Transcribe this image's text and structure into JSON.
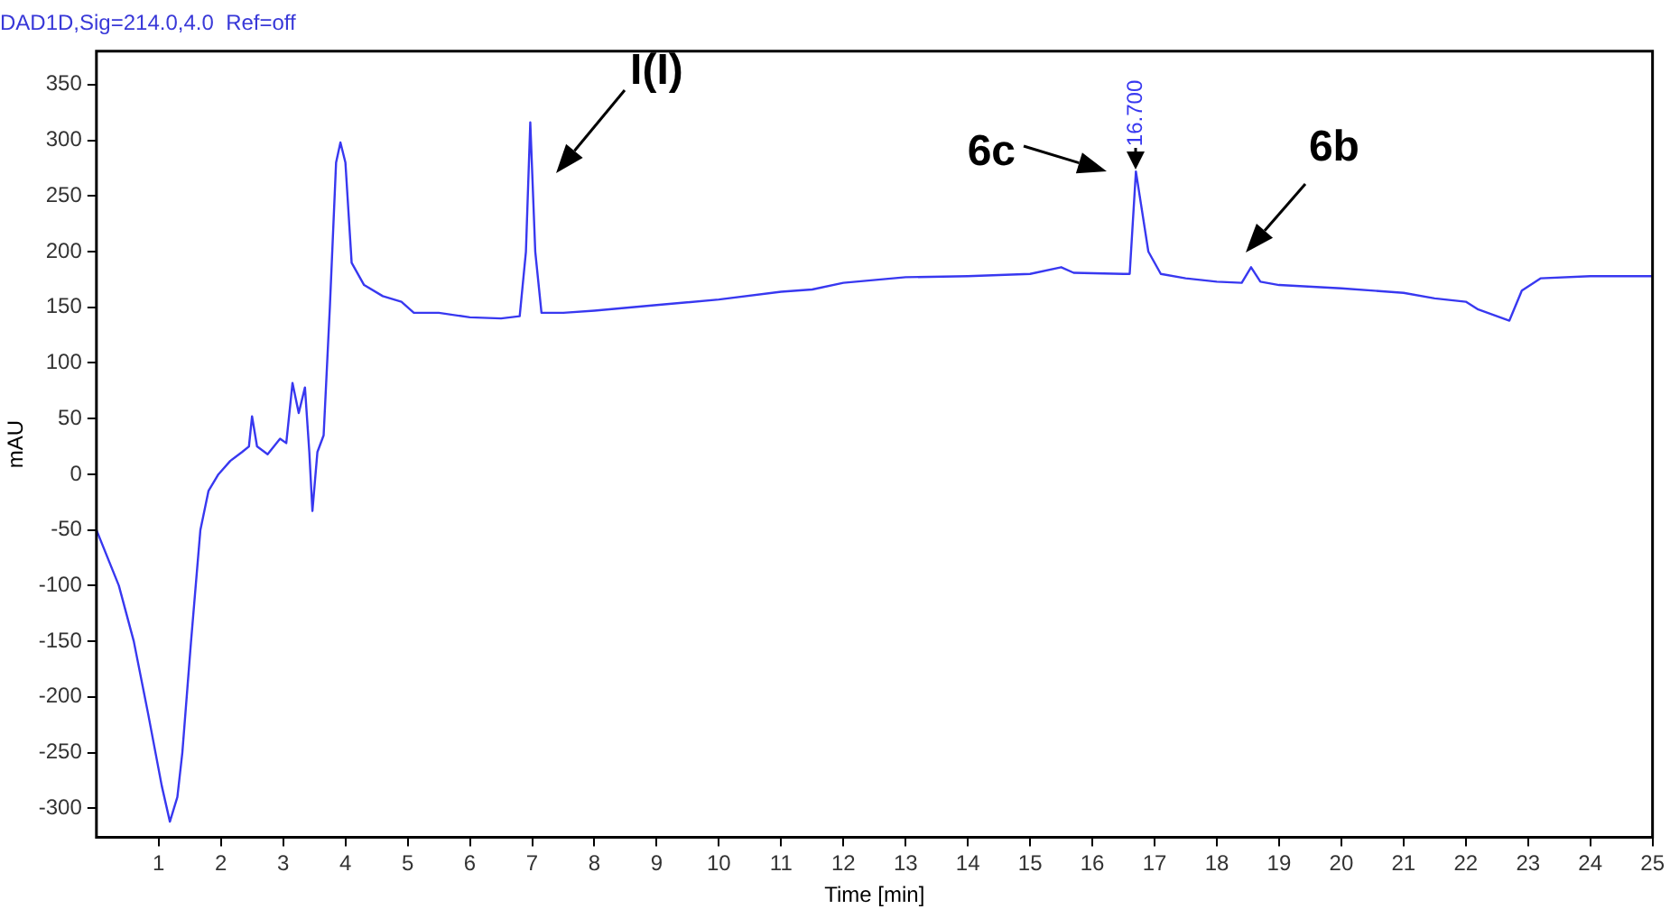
{
  "chart_data": {
    "type": "line",
    "title": "DAD1D,Sig=214.0,4.0  Ref=off",
    "xlabel": "Time [min]",
    "ylabel": "mAU",
    "xlim": [
      0,
      25
    ],
    "xticks": [
      1,
      2,
      3,
      4,
      5,
      6,
      7,
      8,
      9,
      10,
      11,
      12,
      13,
      14,
      15,
      16,
      17,
      18,
      19,
      20,
      21,
      22,
      23,
      24,
      25
    ],
    "ylim": [
      -326,
      380
    ],
    "yticks": [
      -300,
      -250,
      -200,
      -150,
      -100,
      -50,
      0,
      50,
      100,
      150,
      200,
      250,
      300,
      350
    ],
    "grid": false,
    "legend": false,
    "marker": "none",
    "line_style": "solid",
    "series": [
      {
        "color": "#3838f0",
        "x": [
          0,
          0.36,
          0.6,
          0.83,
          1.05,
          1.18,
          1.3,
          1.38,
          1.52,
          1.67,
          1.8,
          1.96,
          2.15,
          2.34,
          2.45,
          2.5,
          2.58,
          2.75,
          2.95,
          3.05,
          3.15,
          3.25,
          3.35,
          3.42,
          3.47,
          3.55,
          3.65,
          3.75,
          3.85,
          3.92,
          4.0,
          4.1,
          4.3,
          4.6,
          4.9,
          5.1,
          5.5,
          6.0,
          6.5,
          6.8,
          6.9,
          6.97,
          7.05,
          7.15,
          7.5,
          8,
          9,
          10,
          11,
          11.5,
          12,
          13,
          14,
          15,
          15.5,
          15.7,
          16.5,
          16.6,
          16.7,
          16.9,
          17.1,
          17.5,
          18,
          18.4,
          18.55,
          18.7,
          19,
          20,
          21,
          21.5,
          22,
          22.2,
          22.7,
          22.9,
          23.2,
          24,
          25
        ],
        "values": [
          -50,
          -100,
          -150,
          -215,
          -280,
          -312,
          -290,
          -250,
          -150,
          -50,
          -15,
          0,
          12,
          20,
          25,
          52,
          25,
          18,
          32,
          28,
          82,
          55,
          78,
          20,
          -33,
          20,
          35,
          150,
          280,
          298,
          280,
          190,
          170,
          160,
          155,
          145,
          145,
          141,
          140,
          142,
          200,
          316,
          200,
          145,
          145,
          147,
          152,
          157,
          164,
          166,
          172,
          177,
          178,
          180,
          186,
          181,
          180,
          180,
          272,
          200,
          180,
          176,
          173,
          172,
          186,
          173,
          170,
          167,
          163,
          158,
          155,
          148,
          138,
          165,
          176,
          178,
          178
        ]
      }
    ],
    "annotations": [
      {
        "text": "I(I)",
        "x": 6.97,
        "y": 316
      },
      {
        "text": "6c",
        "x": 16.7,
        "y": 272
      },
      {
        "text": "16.700",
        "x": 16.7,
        "y": 272
      },
      {
        "text": "6b",
        "x": 18.55,
        "y": 186
      }
    ]
  }
}
